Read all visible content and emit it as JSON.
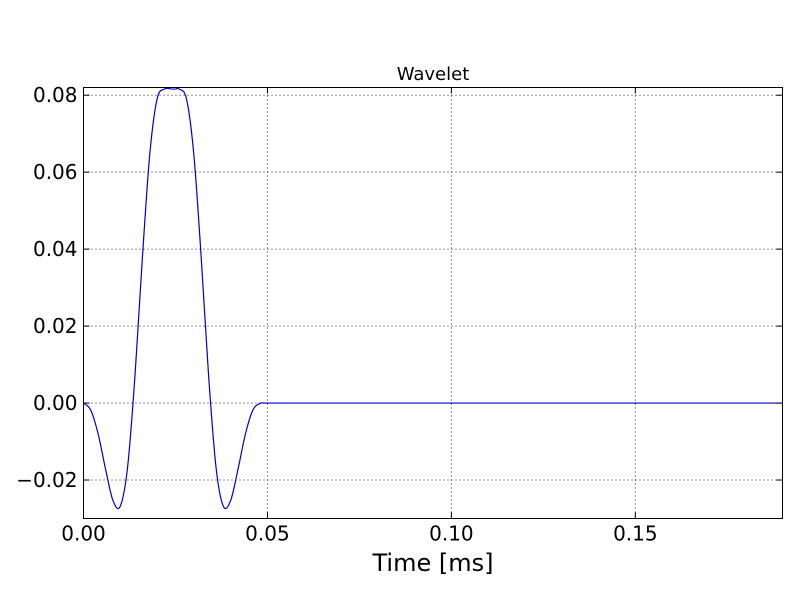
{
  "chart_data": {
    "type": "line",
    "title": "Wavelet",
    "xlabel": "Time [ms]",
    "ylabel": "",
    "xlim": [
      0,
      0.19
    ],
    "ylim": [
      -0.03,
      0.082
    ],
    "xticks": [
      0.0,
      0.05,
      0.1,
      0.15
    ],
    "xtick_labels": [
      "0.00",
      "0.05",
      "0.10",
      "0.15"
    ],
    "yticks": [
      -0.02,
      0.0,
      0.02,
      0.04,
      0.06,
      0.08
    ],
    "ytick_labels": [
      "−0.02",
      "0.00",
      "0.02",
      "0.04",
      "0.06",
      "0.08"
    ],
    "grid": true,
    "series": [
      {
        "color": "#0000cc",
        "x": [
          0.0,
          0.002,
          0.004,
          0.006,
          0.008,
          0.01,
          0.012,
          0.014,
          0.016,
          0.018,
          0.02,
          0.022,
          0.024,
          0.025,
          0.026,
          0.028,
          0.03,
          0.032,
          0.034,
          0.036,
          0.038,
          0.04,
          0.042,
          0.044,
          0.046,
          0.048,
          0.05,
          0.06,
          0.08,
          0.1,
          0.12,
          0.14,
          0.16,
          0.18,
          0.19
        ],
        "y": [
          0.0,
          -0.0019,
          -0.0081,
          -0.0172,
          -0.0253,
          -0.0268,
          -0.0165,
          0.0072,
          0.0377,
          0.0645,
          0.079,
          0.0816,
          0.0816,
          0.0816,
          0.0816,
          0.079,
          0.0645,
          0.0377,
          0.0072,
          -0.0165,
          -0.0268,
          -0.0253,
          -0.0172,
          -0.0081,
          -0.0019,
          -0.0001,
          0.0,
          0.0,
          0.0,
          0.0,
          0.0,
          0.0,
          0.0,
          0.0,
          0.0
        ]
      }
    ]
  }
}
